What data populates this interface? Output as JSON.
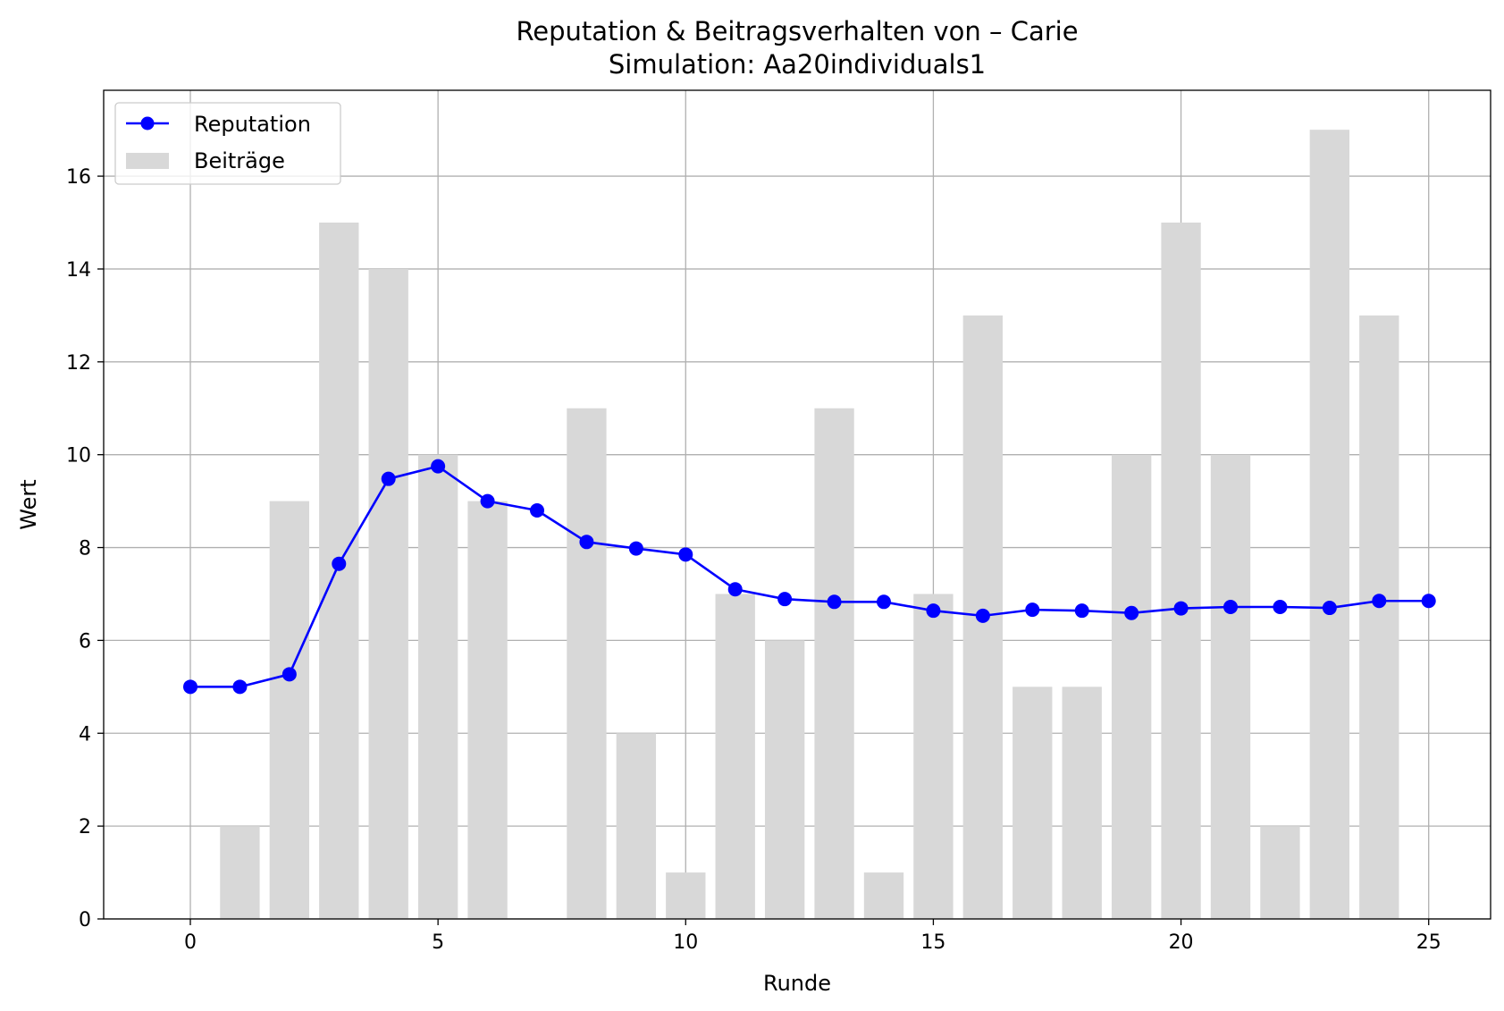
{
  "chart_data": {
    "type": "bar+line",
    "title": "Reputation & Beitragsverhalten von – Carie",
    "subtitle": "Simulation: Aa20individuals1",
    "xlabel": "Runde",
    "ylabel": "Wert",
    "xlim": [
      -1.75,
      26.25
    ],
    "ylim": [
      0,
      17.85
    ],
    "xticks": [
      0,
      5,
      10,
      15,
      20,
      25
    ],
    "yticks": [
      0,
      2,
      4,
      6,
      8,
      10,
      12,
      14,
      16
    ],
    "grid": true,
    "legend_position": "top-left",
    "x": [
      0,
      1,
      2,
      3,
      4,
      5,
      6,
      7,
      8,
      9,
      10,
      11,
      12,
      13,
      14,
      15,
      16,
      17,
      18,
      19,
      20,
      21,
      22,
      23,
      24,
      25
    ],
    "series": [
      {
        "name": "Reputation",
        "type": "line",
        "color": "#0000ff",
        "marker": "circle",
        "values": [
          5.0,
          5.0,
          5.27,
          7.65,
          9.48,
          9.75,
          9.0,
          8.8,
          8.12,
          7.98,
          7.85,
          7.1,
          6.89,
          6.83,
          6.83,
          6.64,
          6.53,
          6.66,
          6.64,
          6.59,
          6.69,
          6.72,
          6.72,
          6.7,
          6.85,
          6.85
        ]
      },
      {
        "name": "Beiträge",
        "type": "bar",
        "color": "#d8d8d8",
        "values": [
          0,
          2,
          9,
          15,
          14,
          10,
          9,
          0,
          11,
          4,
          1,
          7,
          6,
          11,
          1,
          7,
          13,
          5,
          5,
          10,
          15,
          10,
          2,
          17,
          13,
          0
        ]
      }
    ]
  }
}
